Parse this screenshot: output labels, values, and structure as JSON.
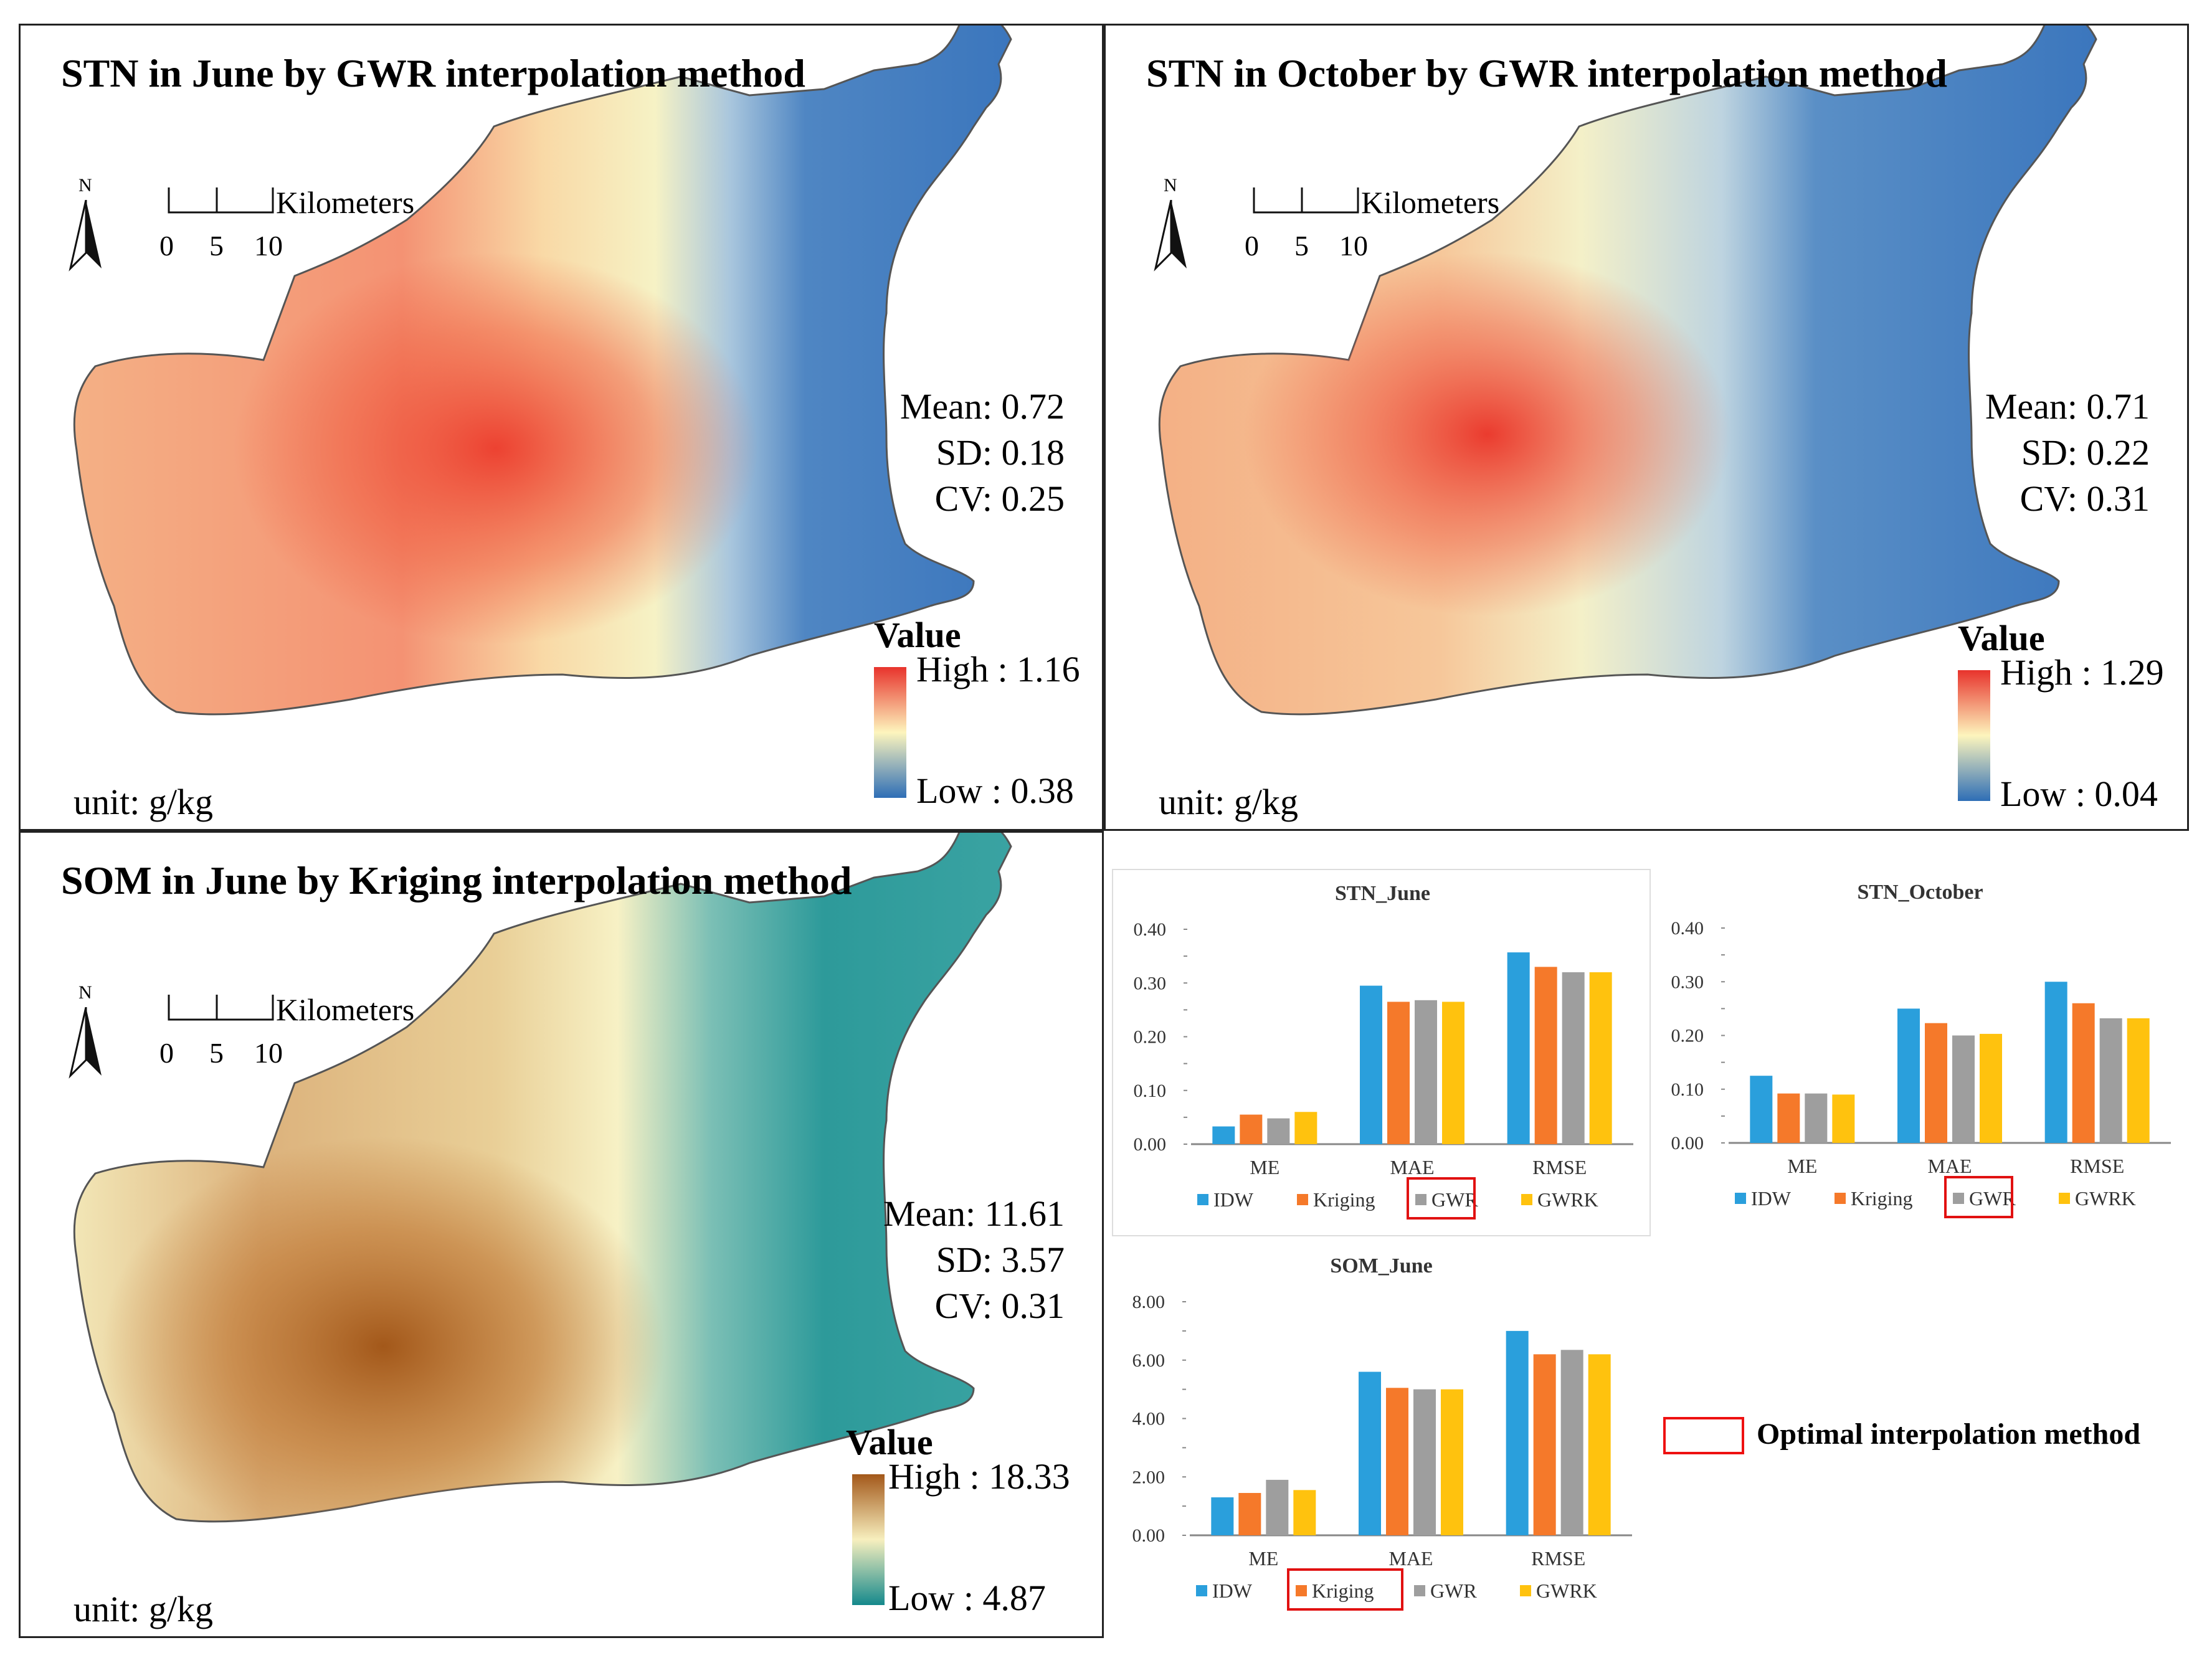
{
  "colors": {
    "high": "#e8332c",
    "mid": "#fdf5bd",
    "low": "#2e6eb6",
    "som_high": "#a3581a",
    "som_mid": "#f7efbe",
    "som_low": "#15898c",
    "idw": "#2a9fdc",
    "kriging": "#f5792a",
    "gwr": "#9e9e9e",
    "gwrk": "#ffc20e",
    "optimal": "#e11111"
  },
  "map_common": {
    "north": "N",
    "scale_unit": "Kilometers",
    "scale_ticks": [
      "0",
      "5",
      "10"
    ],
    "legend_title": "Value",
    "unit": "unit: g/kg"
  },
  "panels": [
    {
      "title": "STN in June by GWR interpolation method",
      "mean": "Mean: 0.72",
      "sd": "SD: 0.18",
      "cv": "CV: 0.25",
      "high": "High : 1.16",
      "low": "Low : 0.38"
    },
    {
      "title": "STN in October by GWR interpolation method",
      "mean": "Mean: 0.71",
      "sd": "SD: 0.22",
      "cv": "CV: 0.31",
      "high": "High : 1.29",
      "low": "Low : 0.04"
    },
    {
      "title": "SOM in June by Kriging interpolation method",
      "mean": "Mean: 11.61",
      "sd": "SD: 3.57",
      "cv": "CV: 0.31",
      "high": "High : 18.33",
      "low": "Low : 4.87"
    }
  ],
  "optimal_legend": "Optimal interpolation method",
  "chart_data": [
    {
      "type": "bar",
      "title": "STN_June",
      "categories": [
        "ME",
        "MAE",
        "RMSE"
      ],
      "yticks": [
        "0.00",
        "0.10",
        "0.20",
        "0.30",
        "0.40"
      ],
      "ylim": [
        0,
        0.4
      ],
      "series": [
        {
          "name": "IDW",
          "values": [
            0.033,
            0.295,
            0.357
          ]
        },
        {
          "name": "Kriging",
          "values": [
            0.055,
            0.265,
            0.33
          ]
        },
        {
          "name": "GWR",
          "values": [
            0.048,
            0.268,
            0.32
          ]
        },
        {
          "name": "GWRK",
          "values": [
            0.06,
            0.265,
            0.32
          ]
        }
      ],
      "optimal": "GWR"
    },
    {
      "type": "bar",
      "title": "STN_October",
      "categories": [
        "ME",
        "MAE",
        "RMSE"
      ],
      "yticks": [
        "0.00",
        "0.10",
        "0.20",
        "0.30",
        "0.40"
      ],
      "ylim": [
        0,
        0.4
      ],
      "series": [
        {
          "name": "IDW",
          "values": [
            0.125,
            0.25,
            0.3
          ]
        },
        {
          "name": "Kriging",
          "values": [
            0.092,
            0.223,
            0.26
          ]
        },
        {
          "name": "GWR",
          "values": [
            0.092,
            0.2,
            0.232
          ]
        },
        {
          "name": "GWRK",
          "values": [
            0.09,
            0.203,
            0.232
          ]
        }
      ],
      "optimal": "GWR"
    },
    {
      "type": "bar",
      "title": "SOM_June",
      "categories": [
        "ME",
        "MAE",
        "RMSE"
      ],
      "yticks": [
        "0.00",
        "2.00",
        "4.00",
        "6.00",
        "8.00"
      ],
      "ylim": [
        0,
        8
      ],
      "series": [
        {
          "name": "IDW",
          "values": [
            1.3,
            5.6,
            7.0
          ]
        },
        {
          "name": "Kriging",
          "values": [
            1.45,
            5.05,
            6.2
          ]
        },
        {
          "name": "GWR",
          "values": [
            1.9,
            5.0,
            6.35
          ]
        },
        {
          "name": "GWRK",
          "values": [
            1.55,
            5.0,
            6.2
          ]
        }
      ],
      "optimal": "Kriging"
    }
  ]
}
